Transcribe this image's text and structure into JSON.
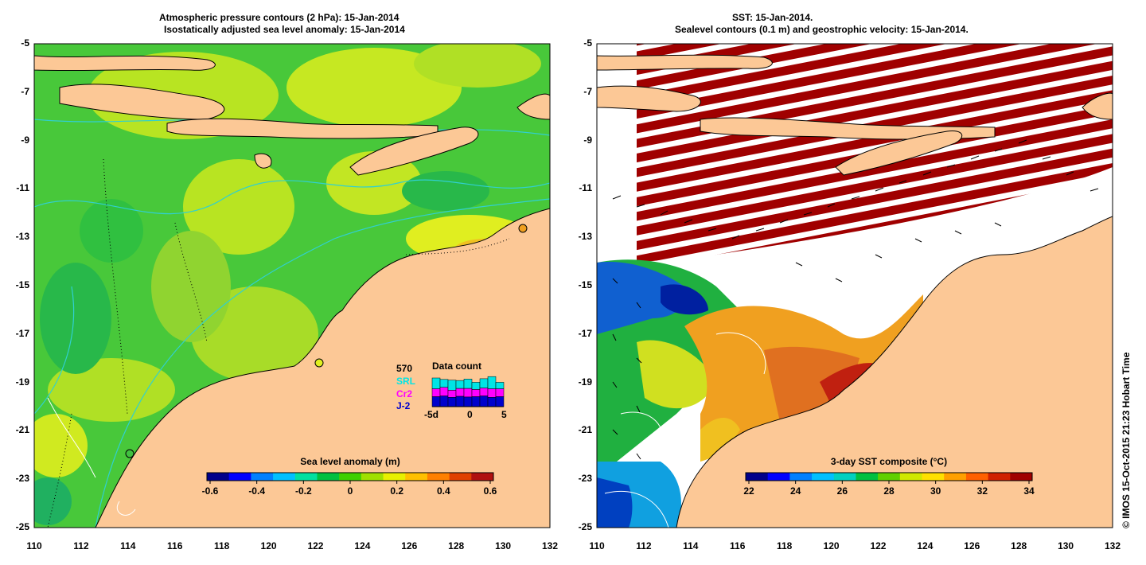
{
  "left_panel": {
    "title_line1": "Atmospheric pressure contours (2 hPa): 15-Jan-2014",
    "title_line2": "Isostatically adjusted sea level anomaly: 15-Jan-2014",
    "y_ticks": [
      "-5",
      "-7",
      "-9",
      "-11",
      "-13",
      "-15",
      "-17",
      "-19",
      "-21",
      "-23",
      "-25"
    ],
    "x_ticks": [
      "110",
      "112",
      "114",
      "116",
      "118",
      "120",
      "122",
      "124",
      "126",
      "128",
      "130",
      "132"
    ],
    "colorbar": {
      "title": "Sea level anomaly (m)",
      "ticks": [
        "-0.6",
        "-0.4",
        "-0.2",
        "0",
        "0.2",
        "0.4",
        "0.6"
      ],
      "colors": [
        "#00008b",
        "#0000ff",
        "#0080ff",
        "#00c0ff",
        "#00e0a0",
        "#00c040",
        "#40d000",
        "#a0e000",
        "#e8f000",
        "#ffc000",
        "#ff8000",
        "#e04000",
        "#b01010"
      ]
    },
    "data_count": {
      "title": "Data count",
      "total": "570",
      "missions": [
        {
          "name": "SRL",
          "color": "#00e5e5"
        },
        {
          "name": "Cr2",
          "color": "#ff00ff"
        },
        {
          "name": "J-2",
          "color": "#0000cc"
        }
      ],
      "x_ticks": [
        "-5d",
        "0",
        "5"
      ],
      "bars": [
        {
          "j2": 0.28,
          "cr2": 0.22,
          "srl": 0.3
        },
        {
          "j2": 0.3,
          "cr2": 0.24,
          "srl": 0.22
        },
        {
          "j2": 0.26,
          "cr2": 0.2,
          "srl": 0.28
        },
        {
          "j2": 0.29,
          "cr2": 0.22,
          "srl": 0.22
        },
        {
          "j2": 0.27,
          "cr2": 0.24,
          "srl": 0.26
        },
        {
          "j2": 0.28,
          "cr2": 0.2,
          "srl": 0.2
        },
        {
          "j2": 0.3,
          "cr2": 0.22,
          "srl": 0.26
        },
        {
          "j2": 0.26,
          "cr2": 0.24,
          "srl": 0.34
        },
        {
          "j2": 0.28,
          "cr2": 0.22,
          "srl": 0.18
        }
      ]
    }
  },
  "right_panel": {
    "title_line1": "SST: 15-Jan-2014.",
    "title_line2": "Sealevel contours (0.1 m) and geostrophic velocity: 15-Jan-2014.",
    "y_ticks": [
      "-5",
      "-7",
      "-9",
      "-11",
      "-13",
      "-15",
      "-17",
      "-19",
      "-21",
      "-23",
      "-25"
    ],
    "x_ticks": [
      "110",
      "112",
      "114",
      "116",
      "118",
      "120",
      "122",
      "124",
      "126",
      "128",
      "130",
      "132"
    ],
    "colorbar": {
      "title": "3-day SST composite (°C)",
      "ticks": [
        "22",
        "24",
        "26",
        "28",
        "30",
        "32",
        "34"
      ],
      "colors": [
        "#00008b",
        "#0000ff",
        "#0080ff",
        "#00c0ff",
        "#00d0c0",
        "#00c040",
        "#60d000",
        "#d0e800",
        "#ffe000",
        "#ffa000",
        "#ff6000",
        "#d02000",
        "#a00000"
      ]
    }
  },
  "credit": "© IMOS 15-Oct-2015 21:23 Hobart Time",
  "colors": {
    "land": "#fcc896",
    "ocean_green": "#40c838",
    "ocean_yellow": "#c8e81e",
    "contour_cyan": "#30d0d0",
    "cloud_band": "#a00000"
  }
}
